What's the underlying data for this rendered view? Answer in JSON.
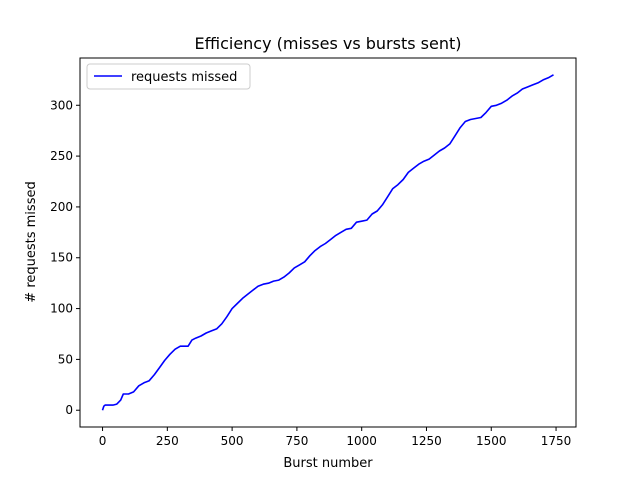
{
  "chart_data": {
    "type": "line",
    "title": "Efficiency (misses vs bursts sent)",
    "xlabel": "Burst number",
    "ylabel": "# requests missed",
    "xlim": [
      -87,
      1827
    ],
    "ylim": [
      -16.5,
      346.5
    ],
    "xticks": [
      0,
      250,
      500,
      750,
      1000,
      1250,
      1500,
      1750
    ],
    "yticks": [
      0,
      50,
      100,
      150,
      200,
      250,
      300
    ],
    "grid": false,
    "legend_position": "top-left",
    "series": [
      {
        "name": "requests missed",
        "color": "#0000ff",
        "x": [
          0,
          5,
          10,
          40,
          55,
          70,
          80,
          100,
          120,
          140,
          160,
          180,
          200,
          220,
          240,
          260,
          280,
          300,
          330,
          345,
          360,
          380,
          400,
          420,
          440,
          460,
          480,
          500,
          520,
          540,
          560,
          580,
          600,
          620,
          640,
          660,
          680,
          700,
          720,
          740,
          760,
          780,
          800,
          820,
          840,
          860,
          880,
          900,
          920,
          940,
          960,
          980,
          1000,
          1020,
          1040,
          1060,
          1080,
          1100,
          1120,
          1140,
          1160,
          1180,
          1200,
          1220,
          1240,
          1260,
          1280,
          1300,
          1320,
          1340,
          1360,
          1380,
          1400,
          1420,
          1440,
          1460,
          1480,
          1500,
          1520,
          1540,
          1560,
          1580,
          1600,
          1620,
          1640,
          1660,
          1680,
          1700,
          1720,
          1740
        ],
        "y": [
          0,
          4,
          5,
          5,
          6,
          10,
          16,
          16,
          18,
          24,
          27,
          29,
          35,
          42,
          49,
          55,
          60,
          63,
          63,
          69,
          71,
          73,
          76,
          78,
          80,
          85,
          92,
          100,
          105,
          110,
          114,
          118,
          122,
          124,
          125,
          127,
          128,
          131,
          135,
          140,
          143,
          146,
          152,
          157,
          161,
          164,
          168,
          172,
          175,
          178,
          179,
          185,
          186,
          187,
          193,
          196,
          202,
          210,
          218,
          222,
          227,
          234,
          238,
          242,
          245,
          247,
          251,
          255,
          258,
          262,
          270,
          278,
          284,
          286,
          287,
          288,
          293,
          299,
          300,
          302,
          305,
          309,
          312,
          316,
          318,
          320,
          322,
          325,
          327,
          330
        ]
      }
    ]
  }
}
